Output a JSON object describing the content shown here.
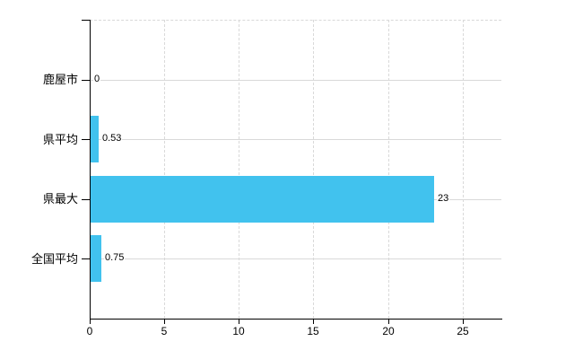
{
  "chart_data": {
    "type": "bar",
    "orientation": "horizontal",
    "title": "",
    "xlabel": "",
    "ylabel": "",
    "categories": [
      "鹿屋市",
      "県平均",
      "県最大",
      "全国平均"
    ],
    "values": [
      0,
      0.53,
      23,
      0.75
    ],
    "value_labels": [
      "0",
      "0.53",
      "23",
      "0.75"
    ],
    "x_ticks": [
      0,
      5,
      10,
      15,
      20,
      25
    ],
    "x_tick_labels": [
      "0",
      "5",
      "10",
      "15",
      "20",
      "25"
    ],
    "xlim": [
      0,
      27.6
    ],
    "grid": true,
    "legend": "none",
    "bar_color": "#41C2EE",
    "grid_color": "#D9D9D9",
    "axis_color": "#000000",
    "text_color": "#000000"
  }
}
